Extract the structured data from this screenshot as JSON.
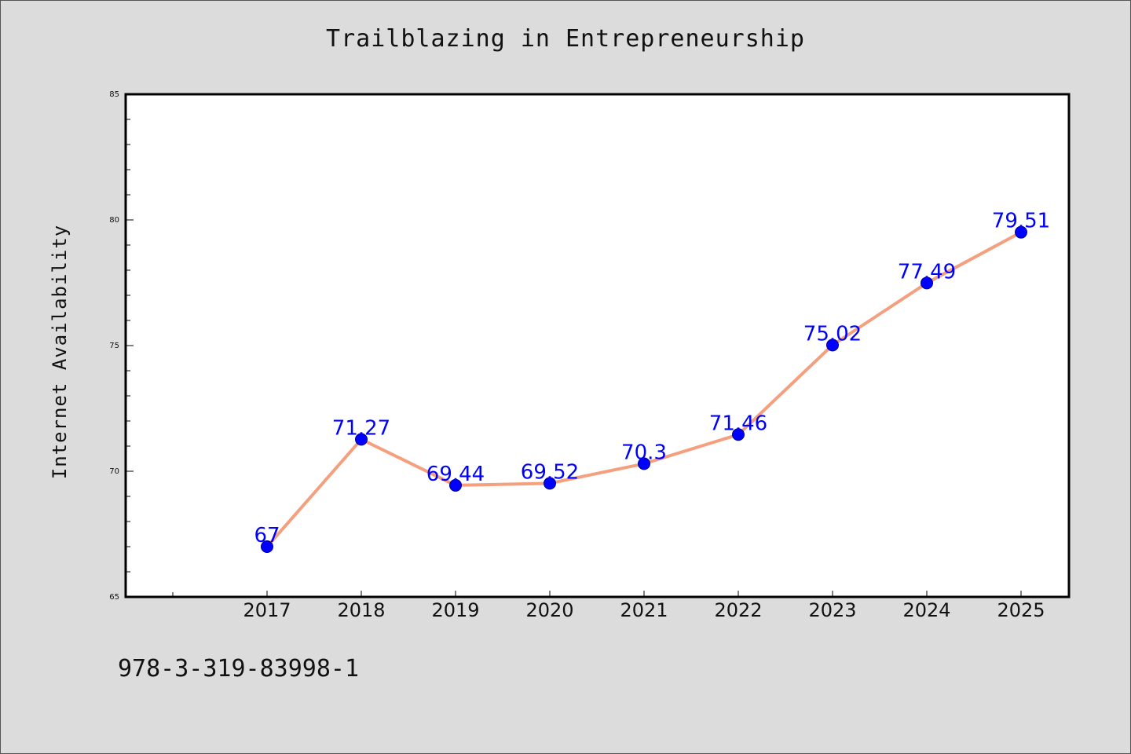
{
  "chart_data": {
    "type": "line",
    "title": "Trailblazing in Entrepreneurship",
    "xlabel": "",
    "ylabel": "Internet Availability",
    "x": [
      "2017",
      "2018",
      "2019",
      "2020",
      "2021",
      "2022",
      "2023",
      "2024",
      "2025"
    ],
    "series": [
      {
        "values": [
          67,
          71.27,
          69.44,
          69.52,
          70.3,
          71.46,
          75.02,
          77.49,
          79.51
        ],
        "labels": [
          "67",
          "71.27",
          "69.44",
          "69.52",
          "70.3",
          "71.46",
          "75.02",
          "77.49",
          "79.51"
        ]
      }
    ],
    "ylim": [
      65,
      85
    ],
    "yticks": [
      "65",
      "70",
      "75",
      "80",
      "85"
    ],
    "grid": false,
    "legend": "none"
  },
  "footer_text": "978-3-319-83998-1",
  "colors": {
    "background": "#dcdcdc",
    "plot_background": "#ffffff",
    "line": "#f4a07e",
    "marker": "#0000ff",
    "data_label": "#0000ff"
  }
}
